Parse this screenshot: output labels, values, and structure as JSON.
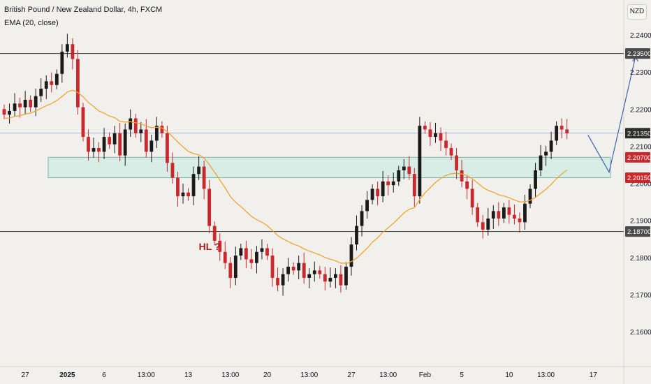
{
  "header": {
    "title": "British Pound / New Zealand Dollar, 4h, FXCM",
    "indicator": "EMA (20, close)"
  },
  "currency_button": "NZD",
  "annotation": "HL ?",
  "colors": {
    "background": "#f2f0ec",
    "up": "#1a1a1a",
    "down": "#c9282d",
    "ema": "#f0a433",
    "zone_fill": "#d7ede5",
    "zone_stroke": "#7fb3a4",
    "level": "#4a4a4a",
    "current_price": "#8ea7d8",
    "projection": "#3f63b0",
    "annotation": "#a3201f"
  },
  "chart_data": {
    "type": "candlestick",
    "symbol": "GBPNZD",
    "timeframe": "4h",
    "ylim": [
      2.152,
      2.244
    ],
    "y_ticks": [
      "2.24000",
      "2.23000",
      "2.22000",
      "2.21000",
      "2.20000",
      "2.19000",
      "2.18000",
      "2.17000",
      "2.16000"
    ],
    "x_ticks": [
      "27",
      "2025",
      "6",
      "13:00",
      "13",
      "13:00",
      "20",
      "13:00",
      "27",
      "13:00",
      "Feb",
      "5",
      "10",
      "13:00",
      "17"
    ],
    "x_tick_index": [
      4,
      12,
      19,
      27,
      35,
      43,
      50,
      58,
      66,
      73,
      80,
      87,
      96,
      103,
      112
    ],
    "price_labels": [
      {
        "text": "2.23500",
        "value": 2.235,
        "kind": "level"
      },
      {
        "text": "2.21350",
        "value": 2.2135,
        "kind": "current"
      },
      {
        "text": "2.20700",
        "value": 2.207,
        "kind": "zone"
      },
      {
        "text": "2.20150",
        "value": 2.2015,
        "kind": "zone"
      },
      {
        "text": "2.18700",
        "value": 2.187,
        "kind": "level"
      }
    ],
    "support_resistance": [
      2.235,
      2.187
    ],
    "current_price": 2.2135,
    "demand_zone": {
      "top": 2.207,
      "bottom": 2.2015
    },
    "closes": [
      2.2185,
      2.2195,
      2.2215,
      2.2205,
      2.2225,
      2.2205,
      2.2235,
      2.2255,
      2.2275,
      2.2265,
      2.2295,
      2.2355,
      2.2375,
      2.2335,
      2.2205,
      2.2125,
      2.2085,
      2.2095,
      2.2085,
      2.2125,
      2.2105,
      2.2135,
      2.2075,
      2.2145,
      2.2175,
      2.2135,
      2.2145,
      2.2085,
      2.2115,
      2.2155,
      2.2135,
      2.2055,
      2.2015,
      2.1965,
      2.1975,
      2.1965,
      2.2025,
      2.2045,
      2.1985,
      2.1885,
      2.1845,
      2.1815,
      2.1785,
      2.1745,
      2.1805,
      2.1825,
      2.1795,
      2.1785,
      2.1815,
      2.1825,
      2.1805,
      2.1745,
      2.1725,
      2.1755,
      2.1775,
      2.1765,
      2.1785,
      2.1745,
      2.1755,
      2.1765,
      2.1755,
      2.1735,
      2.1745,
      2.1755,
      2.1725,
      2.1775,
      2.1835,
      2.1885,
      2.1925,
      2.1955,
      2.1985,
      2.1965,
      2.2005,
      2.1995,
      2.2005,
      2.2035,
      2.2045,
      2.2025,
      2.1965,
      2.2155,
      2.2145,
      2.2125,
      2.2135,
      2.2115,
      2.2095,
      2.2075,
      2.2035,
      2.2005,
      2.1985,
      2.1935,
      2.1895,
      2.1875,
      2.1905,
      2.1925,
      2.1905,
      2.1935,
      2.1915,
      2.1905,
      2.1895,
      2.1945,
      2.1985,
      2.2035,
      2.2075,
      2.2085,
      2.2115,
      2.2155,
      2.2145,
      2.2135
    ],
    "ema": [
      2.2175,
      2.2176,
      2.218,
      2.2182,
      2.2187,
      2.2189,
      2.2195,
      2.2202,
      2.2209,
      2.2215,
      2.2223,
      2.2234,
      2.2246,
      2.2251,
      2.2245,
      2.2233,
      2.2218,
      2.2207,
      2.2195,
      2.2189,
      2.2181,
      2.2177,
      2.2167,
      2.2165,
      2.2166,
      2.2163,
      2.2161,
      2.2154,
      2.215,
      2.2151,
      2.2149,
      2.2139,
      2.2126,
      2.2111,
      2.2098,
      2.2086,
      2.208,
      2.2077,
      2.2068,
      2.205,
      2.203,
      2.2009,
      2.1988,
      2.1964,
      2.1949,
      2.1937,
      2.1924,
      2.1911,
      2.1902,
      2.1895,
      2.1886,
      2.1873,
      2.1859,
      2.185,
      2.1843,
      2.1836,
      2.1831,
      2.1823,
      2.1817,
      2.1812,
      2.1807,
      2.18,
      2.1795,
      2.1791,
      2.1785,
      2.1784,
      2.1789,
      2.1798,
      2.1811,
      2.1825,
      2.1841,
      2.1853,
      2.1868,
      2.188,
      2.1892,
      2.1906,
      2.192,
      2.193,
      2.1934,
      2.1956,
      2.1974,
      2.1988,
      2.2002,
      2.2013,
      2.2021,
      2.2026,
      2.2027,
      2.2025,
      2.2021,
      2.2012,
      2.2001,
      2.1989,
      2.1981,
      2.1976,
      2.1969,
      2.1966,
      2.1961,
      2.1955,
      2.195,
      2.195,
      2.1954,
      2.1962,
      2.1973,
      2.1984,
      2.1997,
      2.2012,
      2.2025,
      2.2036
    ],
    "projection": [
      [
        111,
        2.213
      ],
      [
        115,
        2.203
      ],
      [
        120,
        2.234
      ]
    ]
  }
}
